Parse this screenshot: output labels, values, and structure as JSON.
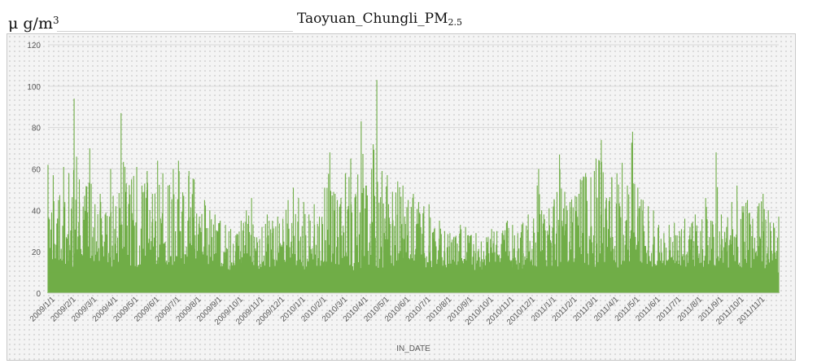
{
  "header": {
    "unit_prefix": "μ g/m",
    "unit_exponent": "3",
    "title_main": "Taoyuan_Chungli_PM",
    "title_sub": "2.5"
  },
  "colors": {
    "series": "#70ad47",
    "gridline": "#d9d9d9",
    "axis_text": "#595959"
  },
  "chart_data": {
    "type": "area",
    "title": "Taoyuan_Chungli_PM2.5",
    "ylabel": "μ g/m3",
    "xlabel": "IN_DATE",
    "ylim": [
      0,
      120
    ],
    "yticks": [
      0,
      20,
      40,
      60,
      80,
      100,
      120
    ],
    "grid": true,
    "legend": "none",
    "x_categories": [
      "2009/1/1",
      "2009/2/1",
      "2009/3/1",
      "2009/4/1",
      "2009/5/1",
      "2009/6/1",
      "2009/7/1",
      "2009/8/1",
      "2009/9/1",
      "2009/10/1",
      "2009/11/1",
      "2009/12/1",
      "2010/1/1",
      "2010/2/1",
      "2010/3/1",
      "2010/4/1",
      "2010/5/1",
      "2010/6/1",
      "2010/7/1",
      "2010/8/1",
      "2010/9/1",
      "2010/10/1",
      "2010/11/1",
      "2010/12/1",
      "2011/1/1",
      "2011/2/1",
      "2011/3/1",
      "2011/4/1",
      "2011/5/1",
      "2011/6/1",
      "2011/7/1",
      "2011/8/1",
      "2011/9/1",
      "2011/10/1",
      "2011/11/1"
    ],
    "series": [
      {
        "name": "",
        "x_start": "2009/1/1",
        "x_end": "2011/11/30",
        "resolution": "approximate semi-weekly envelope of hourly data",
        "values": [
          62,
          57,
          45,
          61,
          58,
          94,
          55,
          47,
          70,
          43,
          48,
          38,
          60,
          42,
          87,
          53,
          55,
          61,
          52,
          59,
          48,
          64,
          58,
          52,
          60,
          64,
          47,
          59,
          55,
          37,
          45,
          40,
          38,
          35,
          33,
          31,
          28,
          35,
          40,
          46,
          27,
          32,
          38,
          35,
          37,
          36,
          45,
          51,
          46,
          44,
          38,
          43,
          37,
          51,
          68,
          48,
          43,
          58,
          65,
          47,
          83,
          52,
          60,
          103,
          59,
          57,
          49,
          54,
          52,
          45,
          48,
          44,
          42,
          43,
          31,
          35,
          30,
          29,
          27,
          33,
          32,
          28,
          29,
          25,
          27,
          31,
          30,
          29,
          35,
          33,
          29,
          34,
          38,
          32,
          60,
          38,
          41,
          45,
          67,
          49,
          44,
          47,
          55,
          58,
          56,
          65,
          74,
          46,
          56,
          58,
          63,
          52,
          78,
          51,
          45,
          42,
          40,
          33,
          29,
          33,
          34,
          30,
          36,
          32,
          38,
          30,
          46,
          35,
          68,
          38,
          32,
          44,
          52,
          42,
          45,
          36,
          42,
          48,
          40,
          34,
          37
        ]
      }
    ]
  }
}
